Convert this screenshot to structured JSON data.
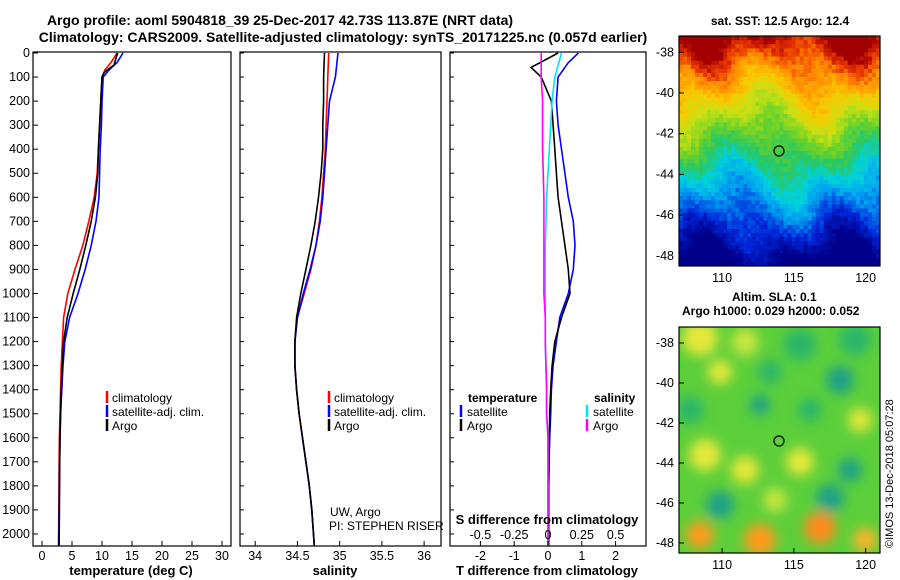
{
  "header": {
    "title_line1": "Argo profile: aoml 5904818_39 25-Dec-2017 42.73S 113.87E (NRT data)",
    "title_line2": "Climatology: CARS2009. Satellite-adjusted climatology: synTS_20171225.nc (0.057d earlier)"
  },
  "colors": {
    "climatology": "#ff0000",
    "satellite": "#0000ff",
    "argo": "#000000",
    "satellite_s": "#00e5ee",
    "argo_s": "#ff00ff"
  },
  "depth_ticks": [
    "0",
    "100",
    "200",
    "300",
    "400",
    "500",
    "600",
    "700",
    "800",
    "900",
    "1000",
    "1100",
    "1200",
    "1300",
    "1400",
    "1500",
    "1600",
    "1700",
    "1800",
    "1900",
    "2000"
  ],
  "panels": {
    "temperature": {
      "xlabel": "temperature (deg C)",
      "xticks": [
        "0",
        "5",
        "10",
        "15",
        "20",
        "25",
        "30"
      ],
      "legend": [
        "climatology",
        "satellite-adj. clim.",
        "Argo"
      ]
    },
    "salinity": {
      "xlabel": "salinity",
      "xticks": [
        "34",
        "34.5",
        "35",
        "35.5",
        "36"
      ],
      "legend": [
        "climatology",
        "satellite-adj. clim.",
        "Argo"
      ],
      "note1": "UW, Argo",
      "note2": "PI: STEPHEN RISER"
    },
    "difference": {
      "xlabel": "T difference from climatology",
      "xlabel_top": "S difference from climatology",
      "xticks_t": [
        "-2",
        "-1",
        "0",
        "1",
        "2"
      ],
      "xticks_s": [
        "-0.5",
        "-0.25",
        "0",
        "0.25",
        "0.5"
      ],
      "legend_t_title": "temperature",
      "legend_t": [
        "satellite",
        "Argo"
      ],
      "legend_s_title": "salinity",
      "legend_s": [
        "satellite",
        "Argo"
      ]
    }
  },
  "maps": {
    "sst": {
      "title": "sat. SST: 12.5 Argo: 12.4",
      "yticks": [
        "-38",
        "-40",
        "-42",
        "-44",
        "-46",
        "-48"
      ],
      "xticks": [
        "110",
        "115",
        "120"
      ]
    },
    "sla": {
      "title_line1": "Altim. SLA: 0.1",
      "title_line2": "Argo h1000: 0.029 h2000: 0.052",
      "yticks": [
        "-38",
        "-40",
        "-42",
        "-44",
        "-46",
        "-48"
      ],
      "xticks": [
        "110",
        "115",
        "120"
      ]
    }
  },
  "credit": "©IMOS 13-Dec-2018 05:07:28",
  "chart_data": [
    {
      "type": "line",
      "name": "temperature",
      "xlabel": "temperature (deg C)",
      "ylabel": "",
      "xlim": [
        -1.5,
        31.5
      ],
      "ylim": [
        2050,
        0
      ],
      "series": [
        {
          "name": "climatology",
          "x": [
            12.5,
            11.5,
            10.5,
            10.0,
            9.8,
            9.6,
            9.4,
            9.2,
            8.7,
            7.8,
            6.8,
            5.5,
            4.3,
            3.6,
            3.4,
            3.2,
            3.1,
            3.0,
            2.9,
            2.85,
            2.8,
            2.75
          ],
          "y": [
            0,
            40,
            70,
            100,
            200,
            300,
            400,
            500,
            600,
            700,
            800,
            900,
            1000,
            1100,
            1200,
            1300,
            1400,
            1500,
            1600,
            1700,
            1900,
            2050
          ]
        },
        {
          "name": "satellite-adj. clim.",
          "x": [
            13.5,
            12.5,
            11.2,
            10.2,
            10.0,
            9.9,
            9.7,
            9.6,
            9.5,
            9.0,
            8.2,
            7.2,
            6.0,
            4.6,
            3.8,
            3.5,
            3.3,
            3.1,
            3.0,
            2.95,
            2.9,
            2.85,
            2.8
          ],
          "y": [
            0,
            40,
            70,
            100,
            200,
            300,
            400,
            500,
            600,
            700,
            800,
            900,
            1000,
            1100,
            1200,
            1300,
            1400,
            1500,
            1600,
            1700,
            1800,
            1900,
            2050
          ]
        },
        {
          "name": "Argo",
          "x": [
            12.6,
            12.0,
            10.4,
            10.0,
            9.8,
            9.6,
            9.4,
            9.3,
            8.9,
            8.2,
            7.3,
            6.3,
            5.2,
            4.2,
            3.6,
            3.4,
            3.2,
            3.1,
            3.0,
            2.95,
            2.9,
            2.85
          ],
          "y": [
            0,
            50,
            80,
            100,
            200,
            300,
            400,
            500,
            600,
            700,
            800,
            900,
            1000,
            1100,
            1200,
            1300,
            1400,
            1500,
            1600,
            1700,
            1900,
            2050
          ]
        }
      ]
    },
    {
      "type": "line",
      "name": "salinity",
      "xlabel": "salinity",
      "ylabel": "",
      "xlim": [
        33.82,
        36.2
      ],
      "ylim": [
        2050,
        0
      ],
      "series": [
        {
          "name": "climatology",
          "x": [
            34.87,
            34.86,
            34.85,
            34.84,
            34.83,
            34.81,
            34.79,
            34.76,
            34.72,
            34.66,
            34.58,
            34.5,
            34.47,
            34.47,
            34.49,
            34.52,
            34.56,
            34.6,
            34.64,
            34.67,
            34.69,
            34.7
          ],
          "y": [
            0,
            100,
            200,
            300,
            400,
            500,
            600,
            700,
            800,
            900,
            1000,
            1100,
            1200,
            1300,
            1400,
            1500,
            1600,
            1700,
            1800,
            1900,
            2000,
            2050
          ]
        },
        {
          "name": "satellite-adj. clim.",
          "x": [
            34.98,
            34.95,
            34.88,
            34.86,
            34.84,
            34.82,
            34.8,
            34.77,
            34.72,
            34.65,
            34.57,
            34.5,
            34.47,
            34.47,
            34.49,
            34.52,
            34.56,
            34.6,
            34.64,
            34.67,
            34.69,
            34.7
          ],
          "y": [
            0,
            100,
            200,
            300,
            400,
            500,
            600,
            700,
            800,
            900,
            1000,
            1100,
            1200,
            1300,
            1400,
            1500,
            1600,
            1700,
            1800,
            1900,
            2000,
            2050
          ]
        },
        {
          "name": "Argo",
          "x": [
            34.82,
            34.81,
            34.81,
            34.8,
            34.8,
            34.78,
            34.75,
            34.71,
            34.66,
            34.6,
            34.54,
            34.49,
            34.47,
            34.47,
            34.49,
            34.52,
            34.56,
            34.6,
            34.64,
            34.67,
            34.69,
            34.7
          ],
          "y": [
            0,
            100,
            200,
            300,
            400,
            500,
            600,
            700,
            800,
            900,
            1000,
            1100,
            1200,
            1300,
            1400,
            1500,
            1600,
            1700,
            1800,
            1900,
            2000,
            2050
          ]
        }
      ]
    },
    {
      "type": "line",
      "name": "difference",
      "xlabel": "T difference from climatology",
      "xlabel_top": "S difference from climatology",
      "xlim": [
        -2.9,
        2.9
      ],
      "ylim": [
        2050,
        0
      ],
      "series": [
        {
          "name": "temperature satellite",
          "units": "deg C",
          "x": [
            0.9,
            0.6,
            0.3,
            0.25,
            0.3,
            0.4,
            0.5,
            0.6,
            0.75,
            0.8,
            0.75,
            0.6,
            0.35,
            0.25,
            0.15,
            0.1,
            0.08,
            0.05,
            0.03,
            0.02,
            0.02,
            0.02
          ],
          "y": [
            0,
            40,
            100,
            200,
            300,
            400,
            500,
            600,
            700,
            800,
            900,
            1000,
            1100,
            1200,
            1300,
            1400,
            1500,
            1600,
            1700,
            1800,
            1900,
            2050
          ]
        },
        {
          "name": "temperature Argo",
          "units": "deg C",
          "x": [
            0.3,
            -0.5,
            -0.2,
            0.1,
            0.15,
            0.2,
            0.25,
            0.3,
            0.4,
            0.5,
            0.6,
            0.65,
            0.4,
            0.2,
            0.12,
            0.08,
            0.05,
            0.04,
            0.03,
            0.02,
            0.02
          ],
          "y": [
            0,
            60,
            100,
            200,
            300,
            400,
            500,
            600,
            700,
            800,
            900,
            1000,
            1100,
            1200,
            1300,
            1400,
            1500,
            1600,
            1700,
            1800,
            2050
          ]
        },
        {
          "name": "salinity satellite",
          "units": "psu",
          "x": [
            0.1,
            0.05,
            0.03,
            0.02,
            0.01,
            0.0,
            -0.01,
            -0.02,
            -0.02,
            -0.02,
            -0.01,
            -0.01,
            0.0,
            0.0,
            0.0,
            0.0,
            0.0,
            0.0
          ],
          "y": [
            0,
            100,
            200,
            300,
            400,
            500,
            600,
            800,
            1000,
            1200,
            1400,
            1500,
            1600,
            1700,
            1800,
            1900,
            2000,
            2050
          ]
        },
        {
          "name": "salinity Argo",
          "units": "psu",
          "x": [
            -0.05,
            -0.05,
            -0.04,
            -0.04,
            -0.03,
            -0.03,
            -0.03,
            -0.02,
            -0.02,
            -0.01,
            -0.01,
            0.0,
            0.0,
            0.0,
            0.0
          ],
          "y": [
            0,
            100,
            200,
            400,
            600,
            800,
            1000,
            1100,
            1200,
            1400,
            1500,
            1600,
            1700,
            1900,
            2050
          ]
        }
      ]
    },
    {
      "type": "heatmap",
      "name": "sat. SST",
      "xlim": [
        107,
        121
      ],
      "ylim": [
        -48.5,
        -37.2
      ],
      "argo_position": {
        "lon": 113.87,
        "lat": -42.73
      }
    },
    {
      "type": "heatmap",
      "name": "Altim. SLA",
      "xlim": [
        107,
        121
      ],
      "ylim": [
        -48.5,
        -37.2
      ],
      "argo_position": {
        "lon": 113.87,
        "lat": -42.73
      }
    }
  ]
}
